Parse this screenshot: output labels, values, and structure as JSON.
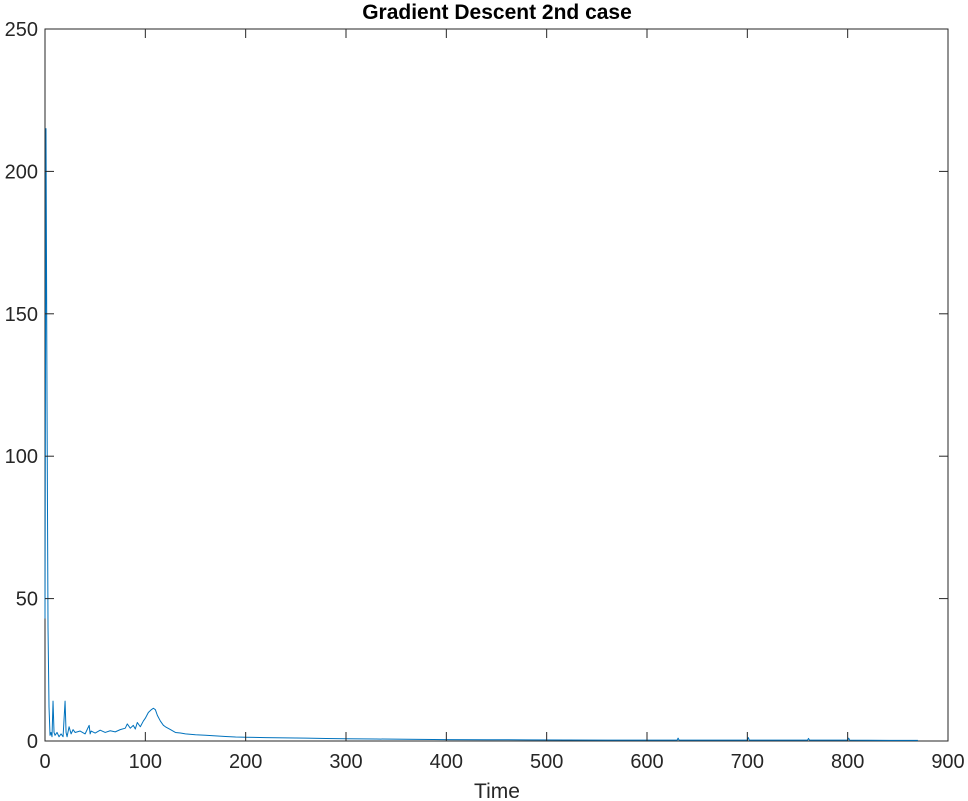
{
  "chart_data": {
    "type": "line",
    "title": "Gradient Descent 2nd case",
    "xlabel": "Time",
    "ylabel": "",
    "xlim": [
      0,
      900
    ],
    "ylim": [
      0,
      250
    ],
    "xticks": [
      0,
      100,
      200,
      300,
      400,
      500,
      600,
      700,
      800,
      900
    ],
    "yticks": [
      0,
      50,
      100,
      150,
      200,
      250
    ],
    "grid": false,
    "line_color": "#0072BD",
    "series": [
      {
        "values_x": [
          0,
          1,
          2,
          3,
          4,
          5,
          6,
          7,
          8,
          9,
          10,
          12,
          14,
          16,
          18,
          20,
          21,
          22,
          24,
          26,
          28,
          30,
          35,
          40,
          44,
          45,
          46,
          50,
          55,
          60,
          65,
          70,
          75,
          80,
          82,
          85,
          88,
          90,
          92,
          95,
          98,
          100,
          103,
          106,
          108,
          110,
          112,
          115,
          118,
          120,
          125,
          130,
          135,
          140,
          150,
          160,
          170,
          180,
          190,
          200,
          220,
          240,
          260,
          280,
          300,
          330,
          360,
          400,
          440,
          480,
          520,
          560,
          600,
          630,
          631,
          632,
          660,
          690,
          700,
          701,
          702,
          720,
          740,
          760,
          761,
          762,
          790,
          800,
          801,
          802,
          820,
          850,
          870
        ],
        "values_y": [
          43,
          215,
          120,
          40,
          12,
          2,
          3,
          1.5,
          14,
          3,
          2,
          3,
          1.5,
          2.5,
          1.5,
          14,
          3,
          1.5,
          5,
          2.5,
          4,
          3,
          3.5,
          2.5,
          5.5,
          2.5,
          3.5,
          2.8,
          3.8,
          3,
          3.6,
          3.2,
          4,
          4.5,
          6,
          4.5,
          5.5,
          4.2,
          6.5,
          5,
          7,
          8,
          10,
          11,
          11.5,
          11,
          9,
          7,
          5.5,
          5,
          4,
          3,
          2.8,
          2.5,
          2.2,
          2,
          1.8,
          1.6,
          1.4,
          1.3,
          1.2,
          1.1,
          1,
          0.9,
          0.8,
          0.7,
          0.6,
          0.5,
          0.45,
          0.4,
          0.35,
          0.3,
          0.3,
          0.3,
          1,
          0.3,
          0.3,
          0.3,
          0.3,
          1.2,
          0.3,
          0.3,
          0.3,
          0.3,
          0.9,
          0.3,
          0.3,
          0.3,
          1,
          0.3,
          0.25,
          0.2,
          0.2
        ]
      }
    ]
  }
}
